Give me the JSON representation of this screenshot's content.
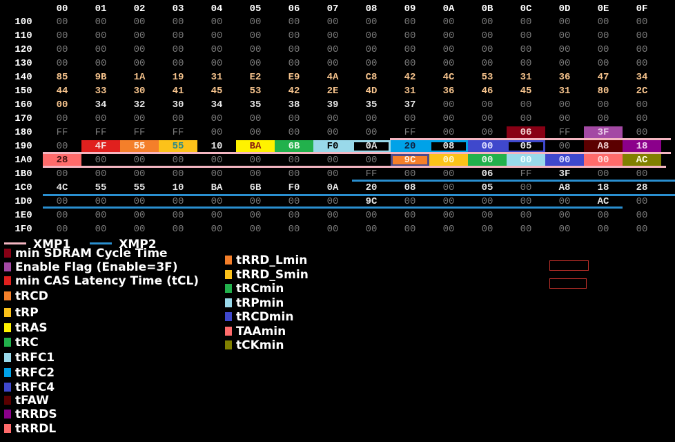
{
  "columns": [
    "00",
    "01",
    "02",
    "03",
    "04",
    "05",
    "06",
    "07",
    "08",
    "09",
    "0A",
    "0B",
    "0C",
    "0D",
    "0E",
    "0F"
  ],
  "rows": [
    {
      "label": "100",
      "values": [
        "00",
        "00",
        "00",
        "00",
        "00",
        "00",
        "00",
        "00",
        "00",
        "00",
        "00",
        "00",
        "00",
        "00",
        "00",
        "00"
      ]
    },
    {
      "label": "110",
      "values": [
        "00",
        "00",
        "00",
        "00",
        "00",
        "00",
        "00",
        "00",
        "00",
        "00",
        "00",
        "00",
        "00",
        "00",
        "00",
        "00"
      ]
    },
    {
      "label": "120",
      "values": [
        "00",
        "00",
        "00",
        "00",
        "00",
        "00",
        "00",
        "00",
        "00",
        "00",
        "00",
        "00",
        "00",
        "00",
        "00",
        "00"
      ]
    },
    {
      "label": "130",
      "values": [
        "00",
        "00",
        "00",
        "00",
        "00",
        "00",
        "00",
        "00",
        "00",
        "00",
        "00",
        "00",
        "00",
        "00",
        "00",
        "00"
      ]
    },
    {
      "label": "140",
      "tone": "orange",
      "values": [
        "85",
        "9B",
        "1A",
        "19",
        "31",
        "E2",
        "E9",
        "4A",
        "C8",
        "42",
        "4C",
        "53",
        "31",
        "36",
        "47",
        "34"
      ]
    },
    {
      "label": "150",
      "tone": "orange",
      "values": [
        "44",
        "33",
        "30",
        "41",
        "45",
        "53",
        "42",
        "2E",
        "4D",
        "31",
        "36",
        "46",
        "45",
        "31",
        "80",
        "2C"
      ]
    },
    {
      "label": "160",
      "values": [
        "00",
        "34",
        "32",
        "30",
        "34",
        "35",
        "38",
        "39",
        "35",
        "37",
        "00",
        "00",
        "00",
        "00",
        "00",
        "00"
      ]
    },
    {
      "label": "170",
      "values": [
        "00",
        "00",
        "00",
        "00",
        "00",
        "00",
        "00",
        "00",
        "00",
        "00",
        "00",
        "00",
        "00",
        "00",
        "00",
        "00"
      ]
    },
    {
      "label": "180",
      "values": [
        "FF",
        "FF",
        "FF",
        "FF",
        "00",
        "00",
        "00",
        "00",
        "00",
        "FF",
        "00",
        "00",
        "06",
        "FF",
        "3F",
        "00"
      ]
    },
    {
      "label": "190",
      "values": [
        "00",
        "4F",
        "55",
        "55",
        "10",
        "BA",
        "6B",
        "F0",
        "0A",
        "20",
        "08",
        "00",
        "05",
        "00",
        "A8",
        "18"
      ]
    },
    {
      "label": "1A0",
      "values": [
        "28",
        "00",
        "00",
        "00",
        "00",
        "00",
        "00",
        "00",
        "00",
        "9C",
        "00",
        "00",
        "00",
        "00",
        "00",
        "AC"
      ]
    },
    {
      "label": "1B0",
      "values": [
        "00",
        "00",
        "00",
        "00",
        "00",
        "00",
        "00",
        "00",
        "FF",
        "00",
        "00",
        "06",
        "FF",
        "3F",
        "00",
        "00"
      ]
    },
    {
      "label": "1C0",
      "values": [
        "4C",
        "55",
        "55",
        "10",
        "BA",
        "6B",
        "F0",
        "0A",
        "20",
        "08",
        "00",
        "05",
        "00",
        "A8",
        "18",
        "28"
      ]
    },
    {
      "label": "1D0",
      "values": [
        "00",
        "00",
        "00",
        "00",
        "00",
        "00",
        "00",
        "00",
        "9C",
        "00",
        "00",
        "00",
        "00",
        "00",
        "AC",
        "00"
      ]
    },
    {
      "label": "1E0",
      "values": [
        "00",
        "00",
        "00",
        "00",
        "00",
        "00",
        "00",
        "00",
        "00",
        "00",
        "00",
        "00",
        "00",
        "00",
        "00",
        "00"
      ]
    },
    {
      "label": "1F0",
      "values": [
        "00",
        "00",
        "00",
        "00",
        "00",
        "00",
        "00",
        "00",
        "00",
        "00",
        "00",
        "00",
        "00",
        "00",
        "00",
        "00"
      ]
    }
  ],
  "highlights": [
    {
      "row": 6,
      "col": 0,
      "fg": "#f7c48d"
    },
    {
      "row": 8,
      "col": 12,
      "bg": "#880015",
      "fg": "#f0d0d0"
    },
    {
      "row": 8,
      "col": 14,
      "bg": "#a349a4",
      "fg": "#e8c8e8"
    },
    {
      "row": 9,
      "col": 1,
      "bg": "#e0201e",
      "fg": "#f5e0e0"
    },
    {
      "row": 9,
      "col": 2,
      "bg": "#f47f2a",
      "fg": "#fff0e0"
    },
    {
      "row": 9,
      "col": 3,
      "bg": "#fcc21a",
      "fg": "#2a8a8a"
    },
    {
      "row": 9,
      "col": 4,
      "fg": "#e6e6e6"
    },
    {
      "row": 9,
      "col": 5,
      "bg": "#fff200",
      "fg": "#8a1a10"
    },
    {
      "row": 9,
      "col": 6,
      "bg": "#22b14c",
      "fg": "#e8f8e8"
    },
    {
      "row": 9,
      "col": 7,
      "bg": "#99d9ea",
      "fg": "#000000"
    },
    {
      "row": 9,
      "col": 8,
      "bg": "#000000",
      "fg": "#e6e6e6",
      "border": "#99d9ea"
    },
    {
      "row": 9,
      "col": 9,
      "bg": "#00a2e8",
      "fg": "#102040"
    },
    {
      "row": 9,
      "col": 10,
      "bg": "#000000",
      "fg": "#e6e6e6",
      "border": "#00a2e8"
    },
    {
      "row": 9,
      "col": 11,
      "bg": "#3f48cc",
      "fg": "#e0e0ff"
    },
    {
      "row": 9,
      "col": 12,
      "bg": "#000000",
      "fg": "#e6e6e6",
      "border": "#3f48cc"
    },
    {
      "row": 9,
      "col": 14,
      "bg": "#5b0000",
      "fg": "#f0d0d0"
    },
    {
      "row": 9,
      "col": 15,
      "bg": "#8b008b",
      "fg": "#f0d0f0"
    },
    {
      "row": 10,
      "col": 0,
      "bg": "#ff6b6b",
      "fg": "#401010"
    },
    {
      "row": 10,
      "col": 9,
      "bg": "#f47f2a",
      "fg": "#fff0e0",
      "border": "#4a4a8a"
    },
    {
      "row": 10,
      "col": 10,
      "bg": "#fcc21a",
      "fg": "#fff8d0"
    },
    {
      "row": 10,
      "col": 11,
      "bg": "#22b14c",
      "fg": "#e8f8e8"
    },
    {
      "row": 10,
      "col": 12,
      "bg": "#99d9ea",
      "fg": "#f0ffff"
    },
    {
      "row": 10,
      "col": 13,
      "bg": "#3f48cc",
      "fg": "#e0e0ff"
    },
    {
      "row": 10,
      "col": 14,
      "bg": "#ff6b6b",
      "fg": "#ffe0e0"
    },
    {
      "row": 10,
      "col": 15,
      "bg": "#808000",
      "fg": "#ffffe0"
    },
    {
      "row": 11,
      "col": 11,
      "fg": "#e6e6e6"
    },
    {
      "row": 11,
      "col": 13,
      "fg": "#e6e6e6"
    },
    {
      "row": 13,
      "col": 8,
      "fg": "#e6e6e6"
    },
    {
      "row": 13,
      "col": 14,
      "fg": "#e6e6e6"
    }
  ],
  "legend": {
    "xmp1": {
      "label": "XMP1",
      "color": "#f4b6c2"
    },
    "xmp2": {
      "label": "XMP2",
      "color": "#2a8fd0"
    },
    "left": [
      {
        "label": "min SDRAM Cycle Time",
        "color": "#880015"
      },
      {
        "label": "Enable Flag (Enable=3F)",
        "color": "#a349a4"
      },
      {
        "label": "min CAS Latency Time (tCL)",
        "color": "#e0201e"
      },
      {
        "label": "tRCD",
        "color": "#f47f2a"
      },
      {
        "label": "tRP",
        "color": "#fcc21a"
      },
      {
        "label": "tRAS",
        "color": "#fff200"
      },
      {
        "label": "tRC",
        "color": "#22b14c"
      },
      {
        "label": "tRFC1",
        "color": "#99d9ea"
      },
      {
        "label": "tRFC2",
        "color": "#00a2e8"
      },
      {
        "label": "tRFC4",
        "color": "#3f48cc"
      },
      {
        "label": "tFAW",
        "color": "#5b0000"
      },
      {
        "label": "tRRDS",
        "color": "#8b008b"
      },
      {
        "label": "tRRDL",
        "color": "#ff6b6b"
      }
    ],
    "right": [
      {
        "label": "tRRD_Lmin",
        "color": "#f47f2a"
      },
      {
        "label": "tRRD_Smin",
        "color": "#fcc21a"
      },
      {
        "label": "tRCmin",
        "color": "#22b14c"
      },
      {
        "label": "tRPmin",
        "color": "#99d9ea"
      },
      {
        "label": "tRCDmin",
        "color": "#3f48cc"
      },
      {
        "label": "TAAmin",
        "color": "#ff6b6b"
      },
      {
        "label": "tCKmin",
        "color": "#808000"
      }
    ]
  }
}
